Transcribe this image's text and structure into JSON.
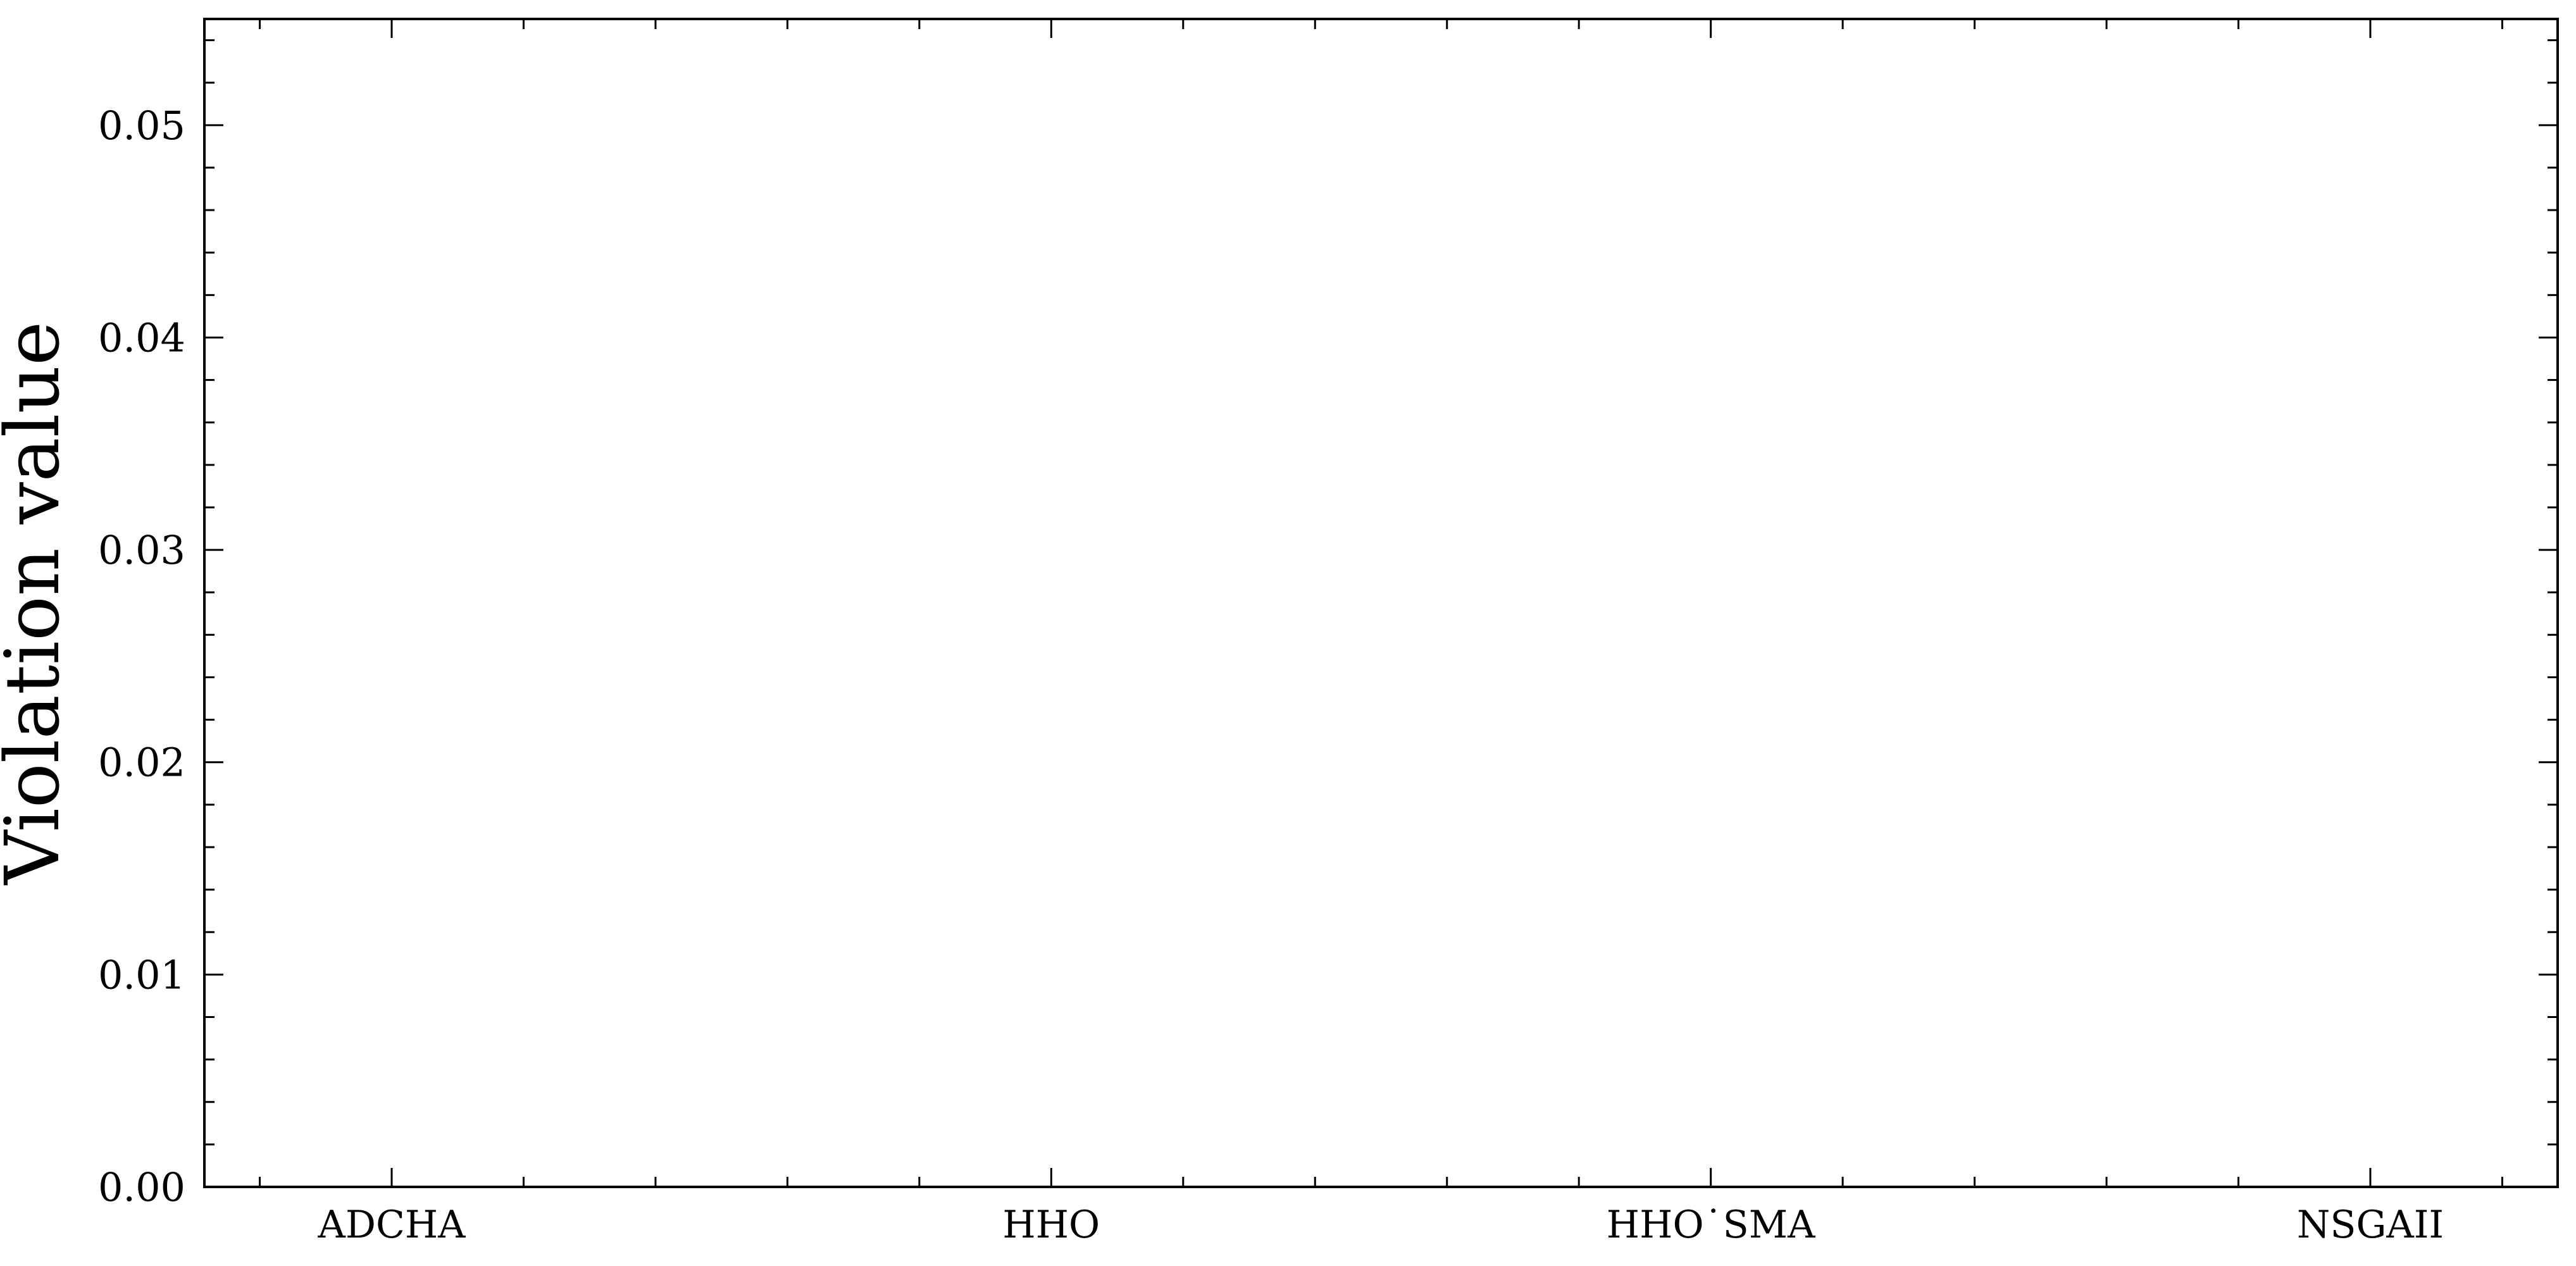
{
  "chart_data": {
    "type": "bar",
    "title": "",
    "xlabel": "",
    "ylabel": "Violation value",
    "categories": [
      "ADCHA",
      "HHO",
      "HHO˙SMA",
      "NSGAII"
    ],
    "values": [
      0,
      0,
      0,
      0
    ],
    "ylim": [
      0,
      0.055
    ],
    "yticks": [
      0.0,
      0.01,
      0.02,
      0.03,
      0.04,
      0.05
    ],
    "ytick_labels": [
      "0.00",
      "0.01",
      "0.02",
      "0.03",
      "0.04",
      "0.05"
    ],
    "grid": false,
    "ticks_direction": "in",
    "colors": {
      "axis": "#000000",
      "bar": "#000000",
      "background": "#ffffff"
    }
  }
}
